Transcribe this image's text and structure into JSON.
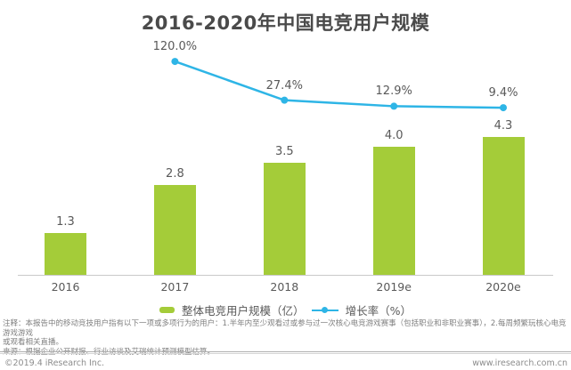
{
  "title": "2016-2020年中国电竞用户规模",
  "chart_data": {
    "type": "bar",
    "categories": [
      "2016",
      "2017",
      "2018",
      "2019e",
      "2020e"
    ],
    "series": [
      {
        "name": "整体电竞用户规模（亿）",
        "type": "bar",
        "values": [
          1.3,
          2.8,
          3.5,
          4.0,
          4.3
        ],
        "labels": [
          "1.3",
          "2.8",
          "3.5",
          "4.0",
          "4.3"
        ]
      },
      {
        "name": "增长率（%）",
        "type": "line",
        "values": [
          null,
          120.0,
          27.4,
          12.9,
          9.4
        ],
        "labels": [
          null,
          "120.0%",
          "27.4%",
          "12.9%",
          "9.4%"
        ]
      }
    ],
    "title": "2016-2020年中国电竞用户规模",
    "xlabel": "",
    "ylabel": "",
    "grid": false,
    "legend_position": "bottom-center"
  },
  "legend": {
    "bar_label": "整体电竞用户规模（亿）",
    "line_label": "增长率（%）"
  },
  "footer": {
    "note_lines": [
      "注释：本报告中的移动竞技用户指有以下一项或多项行为的用户：1.半年内至少观看过或参与过一次核心电竞游戏赛事（包括职业和非职业赛事），2.每周频繁玩核心电竞游戏游戏",
      "或观看相关直播。",
      "来源：根据企业公开财报、行业访谈及艾瑞统计预测模型估算。"
    ],
    "copyright": "©2019.4 iResearch Inc.",
    "website": "www.iresearch.com.cn"
  },
  "colors": {
    "bar": "#a4cc39",
    "line": "#2eb5e6",
    "title": "#4a4a4a",
    "label": "#595959",
    "note": "#7f7f7f",
    "footer_text": "#8c8c8c",
    "axis": "#c9c9c9",
    "rule_dark": "#b0b0b0",
    "rule_light": "#d6d6d6"
  }
}
